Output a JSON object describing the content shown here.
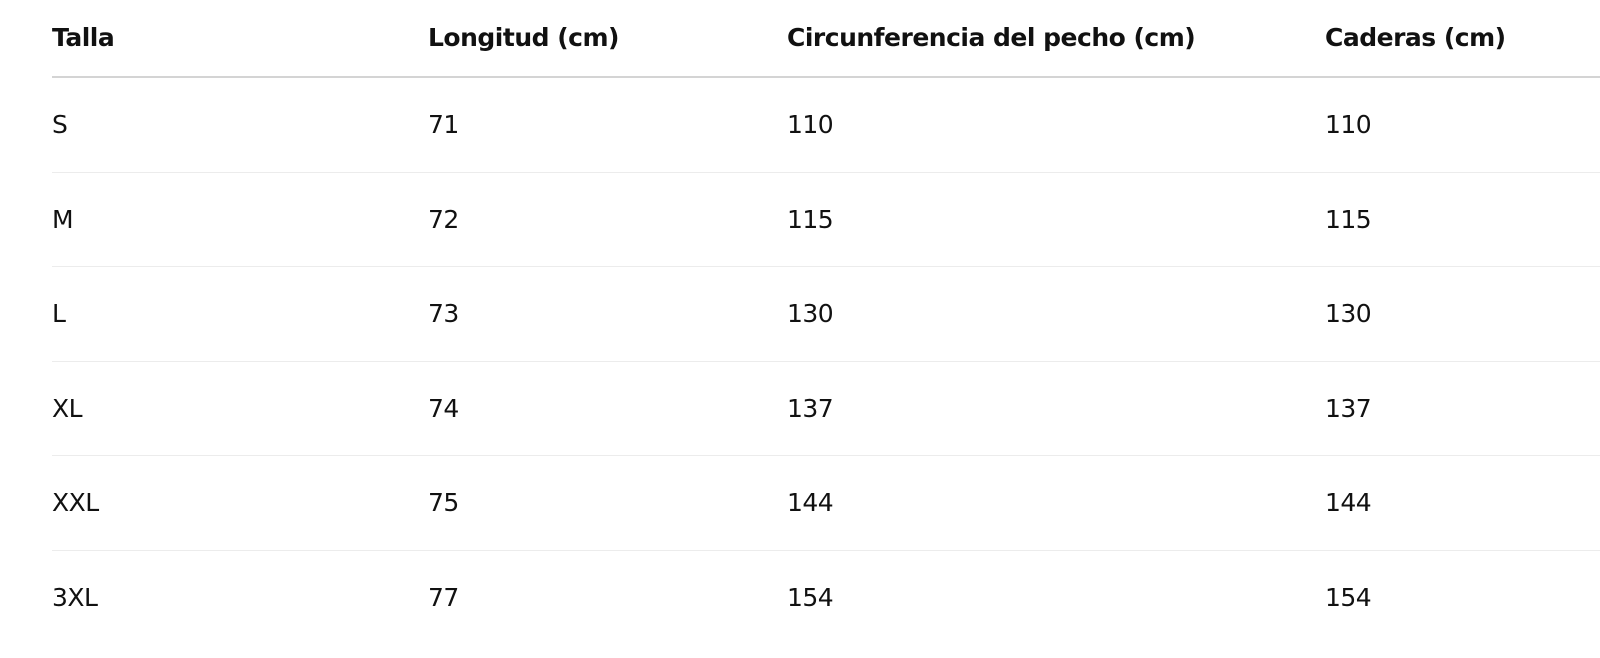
{
  "table": {
    "headers": [
      "Talla",
      "Longitud (cm)",
      "Circunferencia del pecho (cm)",
      "Caderas (cm)"
    ],
    "rows": [
      [
        "S",
        "71",
        "110",
        "110"
      ],
      [
        "M",
        "72",
        "115",
        "115"
      ],
      [
        "L",
        "73",
        "130",
        "130"
      ],
      [
        "XL",
        "74",
        "137",
        "137"
      ],
      [
        "XXL",
        "75",
        "144",
        "144"
      ],
      [
        "3XL",
        "77",
        "154",
        "154"
      ]
    ]
  }
}
